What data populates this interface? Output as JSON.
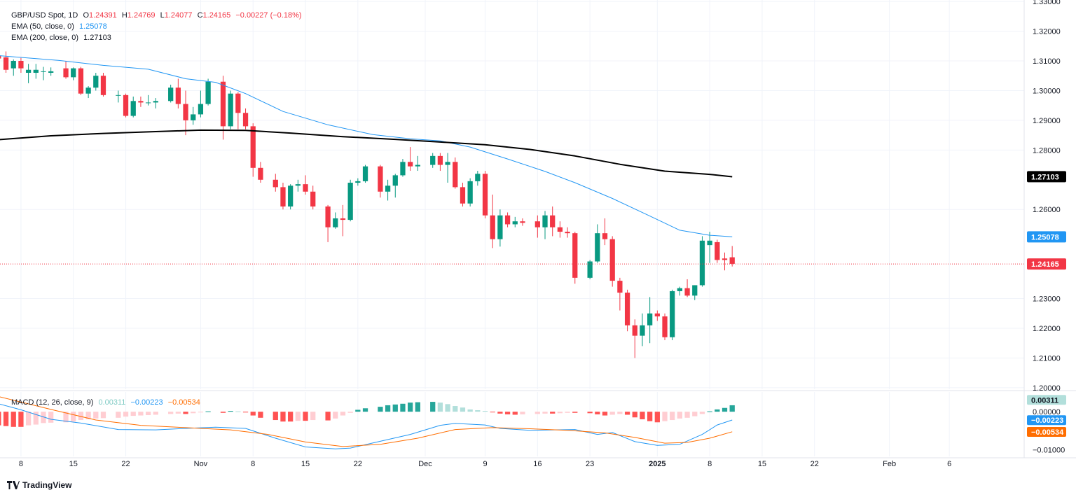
{
  "legend": {
    "symbol": "GBP/USD Spot, 1D",
    "open_label": "O",
    "open": "1.24391",
    "high_label": "H",
    "high": "1.24769",
    "low_label": "L",
    "low": "1.24077",
    "close_label": "C",
    "close": "1.24165",
    "change": "−0.00227 (−0.18%)",
    "ema50_label": "EMA (50, close, 0)",
    "ema50_value": "1.25078",
    "ema200_label": "EMA (200, close, 0)",
    "ema200_value": "1.27103",
    "macd_label": "MACD (12, 26, close, 9)",
    "macd_hist_value": "0.00311",
    "macd_line_value": "−0.00223",
    "macd_signal_value": "−0.00534"
  },
  "footer": {
    "brand": "TradingView",
    "logo_icon": "tradingview-logo-icon"
  },
  "colors": {
    "up": "#089981",
    "down": "#f23645",
    "ema50": "#2196f3",
    "ema200": "#000000",
    "macd_line": "#2196f3",
    "macd_signal": "#ff6d00",
    "hist_pos_strong": "#26a69a",
    "hist_pos_weak": "#b2dfdb",
    "hist_neg_strong": "#ff5252",
    "hist_neg_weak": "#ffcdd2"
  },
  "chart_data": {
    "type": "candlestick",
    "title": "GBP/USD Spot, 1D",
    "price_axis": {
      "ticks": [
        "1.33000",
        "1.32000",
        "1.31000",
        "1.30000",
        "1.29000",
        "1.28000",
        "1.26000",
        "1.23000",
        "1.22000",
        "1.21000",
        "1.20000"
      ],
      "ylim": [
        1.1995,
        1.3305
      ]
    },
    "price_tags": [
      {
        "label": "1.27103",
        "value": 1.27103,
        "series": "EMA 200"
      },
      {
        "label": "1.25078",
        "value": 1.25078,
        "series": "EMA 50"
      },
      {
        "label": "1.24165",
        "value": 1.24165,
        "series": "Last"
      }
    ],
    "time_axis": {
      "ticks": [
        "8",
        "15",
        "22",
        "Nov",
        "8",
        "15",
        "22",
        "Dec",
        "9",
        "16",
        "23",
        "2025",
        "8",
        "15",
        "22",
        "Feb",
        "6"
      ],
      "tick_days": [
        0,
        7,
        14,
        24,
        31,
        38,
        45,
        54,
        62,
        69,
        76,
        85,
        92,
        99,
        106,
        116,
        124
      ],
      "xlim_days": [
        -2.8,
        134
      ]
    },
    "candles": [
      {
        "d": -3,
        "o": 1.3118,
        "h": 1.3138,
        "l": 1.3085,
        "c": 1.3108
      },
      {
        "d": -2,
        "o": 1.3112,
        "h": 1.3132,
        "l": 1.306,
        "c": 1.307
      },
      {
        "d": -1,
        "o": 1.3075,
        "h": 1.3105,
        "l": 1.305,
        "c": 1.31
      },
      {
        "d": 0,
        "o": 1.31,
        "h": 1.311,
        "l": 1.306,
        "c": 1.3075
      },
      {
        "d": 1,
        "o": 1.306,
        "h": 1.309,
        "l": 1.3025,
        "c": 1.307
      },
      {
        "d": 2,
        "o": 1.306,
        "h": 1.309,
        "l": 1.304,
        "c": 1.307
      },
      {
        "d": 3,
        "o": 1.3065,
        "h": 1.308,
        "l": 1.3035,
        "c": 1.3065
      },
      {
        "d": 4,
        "o": 1.306,
        "h": 1.3078,
        "l": 1.305,
        "c": 1.3065
      },
      {
        "d": 6,
        "o": 1.3075,
        "h": 1.31,
        "l": 1.304,
        "c": 1.3045
      },
      {
        "d": 7,
        "o": 1.3045,
        "h": 1.3078,
        "l": 1.3035,
        "c": 1.3075
      },
      {
        "d": 8,
        "o": 1.3075,
        "h": 1.308,
        "l": 1.2985,
        "c": 1.299
      },
      {
        "d": 9,
        "o": 1.299,
        "h": 1.3015,
        "l": 1.2975,
        "c": 1.301
      },
      {
        "d": 10,
        "o": 1.301,
        "h": 1.306,
        "l": 1.3,
        "c": 1.305
      },
      {
        "d": 11,
        "o": 1.305,
        "h": 1.306,
        "l": 1.298,
        "c": 1.2985
      },
      {
        "d": 13,
        "o": 1.2985,
        "h": 1.3,
        "l": 1.296,
        "c": 1.2985
      },
      {
        "d": 14,
        "o": 1.2985,
        "h": 1.299,
        "l": 1.291,
        "c": 1.2915
      },
      {
        "d": 15,
        "o": 1.2915,
        "h": 1.298,
        "l": 1.291,
        "c": 1.2965
      },
      {
        "d": 16,
        "o": 1.2965,
        "h": 1.298,
        "l": 1.2945,
        "c": 1.296
      },
      {
        "d": 17,
        "o": 1.296,
        "h": 1.2985,
        "l": 1.295,
        "c": 1.296
      },
      {
        "d": 18,
        "o": 1.296,
        "h": 1.2975,
        "l": 1.294,
        "c": 1.2965
      },
      {
        "d": 20,
        "o": 1.2965,
        "h": 1.302,
        "l": 1.296,
        "c": 1.301
      },
      {
        "d": 21,
        "o": 1.301,
        "h": 1.304,
        "l": 1.294,
        "c": 1.2955
      },
      {
        "d": 22,
        "o": 1.2955,
        "h": 1.3,
        "l": 1.285,
        "c": 1.29
      },
      {
        "d": 23,
        "o": 1.29,
        "h": 1.2945,
        "l": 1.2885,
        "c": 1.292
      },
      {
        "d": 24,
        "o": 1.292,
        "h": 1.3,
        "l": 1.291,
        "c": 1.2955
      },
      {
        "d": 25,
        "o": 1.2955,
        "h": 1.304,
        "l": 1.295,
        "c": 1.303
      },
      {
        "d": 27,
        "o": 1.303,
        "h": 1.305,
        "l": 1.2835,
        "c": 1.288
      },
      {
        "d": 28,
        "o": 1.288,
        "h": 1.3,
        "l": 1.287,
        "c": 1.299
      },
      {
        "d": 29,
        "o": 1.299,
        "h": 1.2995,
        "l": 1.287,
        "c": 1.2925
      },
      {
        "d": 30,
        "o": 1.2925,
        "h": 1.294,
        "l": 1.287,
        "c": 1.288
      },
      {
        "d": 31,
        "o": 1.288,
        "h": 1.289,
        "l": 1.271,
        "c": 1.274
      },
      {
        "d": 32,
        "o": 1.274,
        "h": 1.276,
        "l": 1.269,
        "c": 1.27
      },
      {
        "d": 34,
        "o": 1.27,
        "h": 1.272,
        "l": 1.266,
        "c": 1.2675
      },
      {
        "d": 35,
        "o": 1.2675,
        "h": 1.269,
        "l": 1.26,
        "c": 1.261
      },
      {
        "d": 36,
        "o": 1.261,
        "h": 1.2685,
        "l": 1.26,
        "c": 1.268
      },
      {
        "d": 37,
        "o": 1.268,
        "h": 1.27,
        "l": 1.266,
        "c": 1.2685
      },
      {
        "d": 38,
        "o": 1.2685,
        "h": 1.2715,
        "l": 1.265,
        "c": 1.266
      },
      {
        "d": 39,
        "o": 1.266,
        "h": 1.268,
        "l": 1.26,
        "c": 1.261
      },
      {
        "d": 41,
        "o": 1.261,
        "h": 1.2615,
        "l": 1.249,
        "c": 1.254
      },
      {
        "d": 42,
        "o": 1.254,
        "h": 1.259,
        "l": 1.2535,
        "c": 1.257
      },
      {
        "d": 43,
        "o": 1.257,
        "h": 1.2615,
        "l": 1.251,
        "c": 1.2565
      },
      {
        "d": 44,
        "o": 1.2565,
        "h": 1.27,
        "l": 1.256,
        "c": 1.269
      },
      {
        "d": 45,
        "o": 1.269,
        "h": 1.2705,
        "l": 1.268,
        "c": 1.2695
      },
      {
        "d": 46,
        "o": 1.2695,
        "h": 1.275,
        "l": 1.269,
        "c": 1.2745
      },
      {
        "d": 48,
        "o": 1.2745,
        "h": 1.275,
        "l": 1.264,
        "c": 1.266
      },
      {
        "d": 49,
        "o": 1.266,
        "h": 1.27,
        "l": 1.263,
        "c": 1.268
      },
      {
        "d": 50,
        "o": 1.268,
        "h": 1.272,
        "l": 1.264,
        "c": 1.2715
      },
      {
        "d": 51,
        "o": 1.2715,
        "h": 1.277,
        "l": 1.271,
        "c": 1.276
      },
      {
        "d": 52,
        "o": 1.276,
        "h": 1.281,
        "l": 1.273,
        "c": 1.2745
      },
      {
        "d": 53,
        "o": 1.2745,
        "h": 1.278,
        "l": 1.273,
        "c": 1.275
      },
      {
        "d": 55,
        "o": 1.275,
        "h": 1.279,
        "l": 1.274,
        "c": 1.278
      },
      {
        "d": 56,
        "o": 1.278,
        "h": 1.279,
        "l": 1.273,
        "c": 1.275
      },
      {
        "d": 57,
        "o": 1.275,
        "h": 1.279,
        "l": 1.269,
        "c": 1.276
      },
      {
        "d": 58,
        "o": 1.276,
        "h": 1.2775,
        "l": 1.267,
        "c": 1.2675
      },
      {
        "d": 59,
        "o": 1.2675,
        "h": 1.269,
        "l": 1.261,
        "c": 1.262
      },
      {
        "d": 60,
        "o": 1.262,
        "h": 1.2705,
        "l": 1.261,
        "c": 1.2695
      },
      {
        "d": 61,
        "o": 1.2695,
        "h": 1.273,
        "l": 1.268,
        "c": 1.272
      },
      {
        "d": 62,
        "o": 1.272,
        "h": 1.273,
        "l": 1.257,
        "c": 1.258
      },
      {
        "d": 63,
        "o": 1.258,
        "h": 1.265,
        "l": 1.247,
        "c": 1.25
      },
      {
        "d": 64,
        "o": 1.25,
        "h": 1.26,
        "l": 1.2475,
        "c": 1.258
      },
      {
        "d": 65,
        "o": 1.258,
        "h": 1.259,
        "l": 1.254,
        "c": 1.255
      },
      {
        "d": 66,
        "o": 1.255,
        "h": 1.2575,
        "l": 1.254,
        "c": 1.256
      },
      {
        "d": 67,
        "o": 1.256,
        "h": 1.257,
        "l": 1.2545,
        "c": 1.2555
      },
      {
        "d": 69,
        "o": 1.256,
        "h": 1.258,
        "l": 1.2505,
        "c": 1.254
      },
      {
        "d": 70,
        "o": 1.254,
        "h": 1.2595,
        "l": 1.25,
        "c": 1.258
      },
      {
        "d": 71,
        "o": 1.258,
        "h": 1.261,
        "l": 1.251,
        "c": 1.254
      },
      {
        "d": 72,
        "o": 1.254,
        "h": 1.256,
        "l": 1.2505,
        "c": 1.2525
      },
      {
        "d": 73,
        "o": 1.2525,
        "h": 1.254,
        "l": 1.2505,
        "c": 1.252
      },
      {
        "d": 74,
        "o": 1.252,
        "h": 1.2525,
        "l": 1.235,
        "c": 1.237
      },
      {
        "d": 76,
        "o": 1.237,
        "h": 1.243,
        "l": 1.2365,
        "c": 1.2425
      },
      {
        "d": 77,
        "o": 1.2425,
        "h": 1.255,
        "l": 1.242,
        "c": 1.252
      },
      {
        "d": 78,
        "o": 1.252,
        "h": 1.257,
        "l": 1.248,
        "c": 1.25
      },
      {
        "d": 79,
        "o": 1.25,
        "h": 1.251,
        "l": 1.234,
        "c": 1.236
      },
      {
        "d": 80,
        "o": 1.236,
        "h": 1.237,
        "l": 1.226,
        "c": 1.232
      },
      {
        "d": 81,
        "o": 1.232,
        "h": 1.233,
        "l": 1.219,
        "c": 1.221
      },
      {
        "d": 82,
        "o": 1.221,
        "h": 1.223,
        "l": 1.21,
        "c": 1.2175
      },
      {
        "d": 83,
        "o": 1.2175,
        "h": 1.225,
        "l": 1.214,
        "c": 1.221
      },
      {
        "d": 84,
        "o": 1.221,
        "h": 1.2305,
        "l": 1.215,
        "c": 1.225
      },
      {
        "d": 85,
        "o": 1.225,
        "h": 1.226,
        "l": 1.2225,
        "c": 1.224
      },
      {
        "d": 86,
        "o": 1.224,
        "h": 1.225,
        "l": 1.216,
        "c": 1.217
      },
      {
        "d": 87,
        "o": 1.217,
        "h": 1.233,
        "l": 1.216,
        "c": 1.2325
      },
      {
        "d": 88,
        "o": 1.2325,
        "h": 1.234,
        "l": 1.231,
        "c": 1.2335
      },
      {
        "d": 89,
        "o": 1.2335,
        "h": 1.2365,
        "l": 1.2305,
        "c": 1.231
      },
      {
        "d": 90,
        "o": 1.231,
        "h": 1.2345,
        "l": 1.2295,
        "c": 1.2345
      },
      {
        "d": 91,
        "o": 1.2345,
        "h": 1.251,
        "l": 1.234,
        "c": 1.2495
      },
      {
        "d": 92,
        "o": 1.248,
        "h": 1.2525,
        "l": 1.242,
        "c": 1.2495
      },
      {
        "d": 93,
        "o": 1.249,
        "h": 1.2498,
        "l": 1.242,
        "c": 1.243
      },
      {
        "d": 94,
        "o": 1.2435,
        "h": 1.2455,
        "l": 1.2395,
        "c": 1.243
      },
      {
        "d": 95,
        "o": 1.2439,
        "h": 1.2477,
        "l": 1.2408,
        "c": 1.2417
      }
    ],
    "ema50": [
      [
        -3,
        1.3118
      ],
      [
        5,
        1.3102
      ],
      [
        11,
        1.3085
      ],
      [
        17,
        1.3072
      ],
      [
        22,
        1.304
      ],
      [
        26,
        1.3028
      ],
      [
        30,
        1.299
      ],
      [
        35,
        1.293
      ],
      [
        41,
        1.2885
      ],
      [
        47,
        1.2852
      ],
      [
        52,
        1.2838
      ],
      [
        56,
        1.2831
      ],
      [
        60,
        1.281
      ],
      [
        65,
        1.277
      ],
      [
        70,
        1.2728
      ],
      [
        74,
        1.269
      ],
      [
        79,
        1.2637
      ],
      [
        84,
        1.2578
      ],
      [
        88,
        1.253
      ],
      [
        92,
        1.2513
      ],
      [
        95,
        1.2508
      ]
    ],
    "ema200": [
      [
        -3,
        1.2835
      ],
      [
        4,
        1.2848
      ],
      [
        11,
        1.2856
      ],
      [
        18,
        1.2862
      ],
      [
        24,
        1.2867
      ],
      [
        30,
        1.2866
      ],
      [
        36,
        1.2857
      ],
      [
        43,
        1.2845
      ],
      [
        50,
        1.2836
      ],
      [
        56,
        1.2827
      ],
      [
        62,
        1.2818
      ],
      [
        68,
        1.2802
      ],
      [
        74,
        1.278
      ],
      [
        80,
        1.2752
      ],
      [
        86,
        1.2729
      ],
      [
        92,
        1.2718
      ],
      [
        95,
        1.271
      ]
    ],
    "macd": {
      "axis_ticks": [
        "0.00000",
        "−0.01000"
      ],
      "ylim": [
        -0.0118,
        0.0052
      ],
      "tags": [
        {
          "label": "0.00311",
          "value": 0.00311,
          "series": "Histogram"
        },
        {
          "label": "−0.00223",
          "value": -0.00223,
          "series": "MACD"
        },
        {
          "label": "−0.00534",
          "value": -0.00534,
          "series": "Signal"
        }
      ],
      "hist": [
        -0.0036,
        -0.0038,
        -0.004,
        -0.004,
        -0.0036,
        -0.0034,
        -0.003,
        -0.0029,
        -0.0028,
        -0.0026,
        -0.0022,
        -0.002,
        -0.0018,
        -0.0017,
        -0.0016,
        -0.0013,
        -0.0011,
        -0.001,
        -0.0009,
        -0.0008,
        -0.0006,
        -0.0005,
        -0.0006,
        -0.0004,
        -0.0002,
        0.0001,
        -0.0003,
        0.0002,
        0.0001,
        -0.0002,
        -0.001,
        -0.0016,
        -0.0022,
        -0.0026,
        -0.0026,
        -0.0024,
        -0.0024,
        -0.0022,
        -0.0023,
        -0.0018,
        -0.001,
        -0.0003,
        0.0005,
        0.0009,
        0.0013,
        0.0017,
        0.0019,
        0.0021,
        0.0024,
        0.0025,
        0.0026,
        0.0024,
        0.002,
        0.0015,
        0.0011,
        0.0006,
        0.0004,
        0.0002,
        -0.0001,
        -0.0005,
        -0.0007,
        -0.0008,
        -0.0007,
        -0.0006,
        -0.0005,
        -0.0005,
        -0.0004,
        -0.0003,
        -0.0003,
        -0.0004,
        -0.0007,
        -0.001,
        -0.0008,
        -0.0006,
        -0.0008,
        -0.0015,
        -0.002,
        -0.0025,
        -0.0028,
        -0.0025,
        -0.0022,
        -0.0018,
        -0.0016,
        -0.0012,
        -0.0006,
        0.0001,
        0.0006,
        0.001,
        0.0017,
        0.0028,
        0.0034,
        0.0036,
        0.0037,
        0.0036,
        0.0031
      ],
      "macd_line": [
        [
          -3,
          0.0021
        ],
        [
          0,
          0.0005
        ],
        [
          4,
          -0.002
        ],
        [
          8,
          -0.003
        ],
        [
          13,
          -0.0047
        ],
        [
          18,
          -0.0048
        ],
        [
          22,
          -0.0044
        ],
        [
          26,
          -0.0041
        ],
        [
          30,
          -0.0044
        ],
        [
          34,
          -0.007
        ],
        [
          38,
          -0.0093
        ],
        [
          42,
          -0.0098
        ],
        [
          44,
          -0.0096
        ],
        [
          48,
          -0.0078
        ],
        [
          52,
          -0.006
        ],
        [
          56,
          -0.0036
        ],
        [
          58,
          -0.0031
        ],
        [
          62,
          -0.0035
        ],
        [
          64,
          -0.0044
        ],
        [
          68,
          -0.0049
        ],
        [
          74,
          -0.0047
        ],
        [
          77,
          -0.006
        ],
        [
          79,
          -0.0055
        ],
        [
          82,
          -0.0079
        ],
        [
          85,
          -0.0089
        ],
        [
          88,
          -0.0086
        ],
        [
          91,
          -0.006
        ],
        [
          93,
          -0.0035
        ],
        [
          95,
          -0.0022
        ]
      ],
      "signal_line": [
        [
          -3,
          0.004
        ],
        [
          4,
          0.0006
        ],
        [
          10,
          -0.0022
        ],
        [
          16,
          -0.0036
        ],
        [
          22,
          -0.0042
        ],
        [
          28,
          -0.0048
        ],
        [
          33,
          -0.006
        ],
        [
          38,
          -0.008
        ],
        [
          43,
          -0.0092
        ],
        [
          48,
          -0.0086
        ],
        [
          53,
          -0.007
        ],
        [
          58,
          -0.0047
        ],
        [
          63,
          -0.0042
        ],
        [
          68,
          -0.0045
        ],
        [
          73,
          -0.0049
        ],
        [
          78,
          -0.0056
        ],
        [
          82,
          -0.0068
        ],
        [
          86,
          -0.0083
        ],
        [
          89,
          -0.0081
        ],
        [
          92,
          -0.007
        ],
        [
          95,
          -0.0053
        ]
      ]
    }
  }
}
